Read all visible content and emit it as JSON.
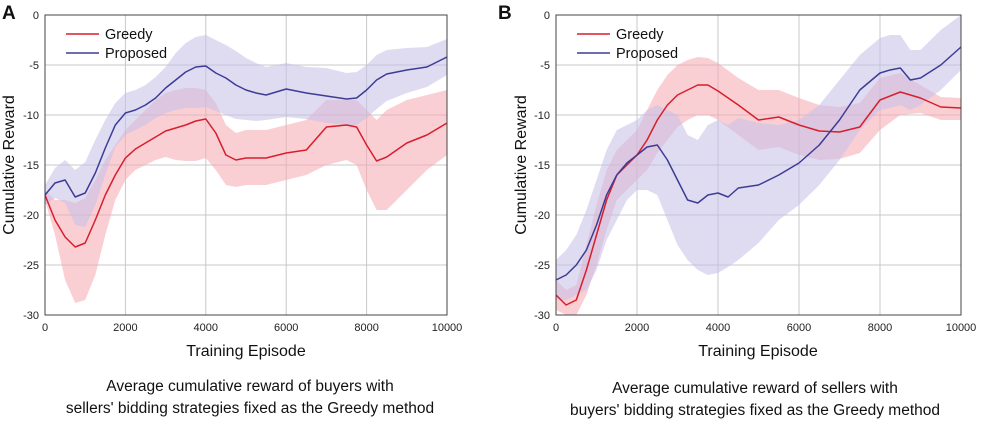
{
  "chart_data": [
    {
      "panel_label": "A",
      "type": "line",
      "xlabel": "Training Episode",
      "ylabel": "Cumulative Reward",
      "xlim": [
        0,
        10000
      ],
      "ylim": [
        -30,
        0
      ],
      "xticks": [
        "0",
        "2000",
        "4000",
        "6000",
        "8000",
        "10000"
      ],
      "yticks": [
        "0",
        "-5",
        "-10",
        "-15",
        "-20",
        "-25",
        "-30"
      ],
      "grid": true,
      "legend_position": "top-left",
      "caption_line1": "Average cumulative reward of buyers with",
      "caption_line2": "sellers' bidding strategies fixed as the Greedy method",
      "series": [
        {
          "name": "Greedy",
          "color": "#d81e2c",
          "band_color": "#f6a8b0",
          "x": [
            0,
            250,
            500,
            750,
            1000,
            1250,
            1500,
            1750,
            2000,
            2250,
            2500,
            2750,
            3000,
            3250,
            3500,
            3750,
            4000,
            4250,
            4500,
            4750,
            5000,
            5500,
            6000,
            6500,
            7000,
            7500,
            7750,
            8000,
            8250,
            8500,
            9000,
            9500,
            10000
          ],
          "values": [
            -18,
            -20.5,
            -22.2,
            -23.2,
            -22.8,
            -20.5,
            -18,
            -16,
            -14.3,
            -13.4,
            -12.8,
            -12.2,
            -11.6,
            -11.3,
            -11,
            -10.6,
            -10.4,
            -11.8,
            -14,
            -14.5,
            -14.3,
            -14.3,
            -13.8,
            -13.5,
            -11.2,
            -11,
            -11.2,
            -13,
            -14.6,
            -14.2,
            -12.8,
            -12,
            -10.8
          ],
          "lower": [
            -18.5,
            -22,
            -26.5,
            -28.8,
            -28.5,
            -26,
            -22,
            -18.5,
            -16.5,
            -15.5,
            -15,
            -14.5,
            -14.2,
            -14.5,
            -14.6,
            -14.6,
            -14.3,
            -15.5,
            -17,
            -17.2,
            -17,
            -17,
            -16.5,
            -16,
            -15,
            -14.5,
            -15,
            -17.5,
            -19.5,
            -19.5,
            -17.5,
            -15.5,
            -14
          ],
          "upper": [
            -17.5,
            -18.5,
            -18.5,
            -18.8,
            -18.3,
            -16.5,
            -14.5,
            -13,
            -11.5,
            -10.5,
            -9.5,
            -8.5,
            -7.8,
            -7.5,
            -7.3,
            -7.3,
            -7.5,
            -8.8,
            -11,
            -11.8,
            -11.5,
            -11.5,
            -11,
            -10.5,
            -8.5,
            -8.5,
            -8.5,
            -9.5,
            -10.5,
            -9.5,
            -8.5,
            -8,
            -7.5
          ]
        },
        {
          "name": "Proposed",
          "color": "#3c3c96",
          "band_color": "#c4bfe8",
          "x": [
            0,
            250,
            500,
            750,
            1000,
            1250,
            1500,
            1750,
            2000,
            2250,
            2500,
            2750,
            3000,
            3250,
            3500,
            3750,
            4000,
            4250,
            4500,
            4750,
            5000,
            5250,
            5500,
            6000,
            6500,
            7000,
            7500,
            7750,
            8000,
            8250,
            8500,
            9000,
            9500,
            10000
          ],
          "values": [
            -18,
            -16.8,
            -16.5,
            -18.2,
            -17.8,
            -15.8,
            -13.3,
            -11,
            -9.8,
            -9.5,
            -9,
            -8.3,
            -7.3,
            -6.5,
            -5.7,
            -5.2,
            -5.1,
            -5.8,
            -6.3,
            -7,
            -7.5,
            -7.8,
            -8,
            -7.4,
            -7.8,
            -8.1,
            -8.4,
            -8.3,
            -7.5,
            -6.5,
            -5.9,
            -5.5,
            -5.2,
            -4.2
          ],
          "lower": [
            -19,
            -18.3,
            -18.8,
            -21,
            -21.2,
            -19,
            -16,
            -13.2,
            -12,
            -11.5,
            -11,
            -10.3,
            -9.8,
            -9.5,
            -9.3,
            -9.3,
            -9.2,
            -9.6,
            -10,
            -10.4,
            -10.5,
            -10.6,
            -10.5,
            -10.2,
            -10.4,
            -10.8,
            -11,
            -11,
            -10.3,
            -9.4,
            -8.6,
            -7.8,
            -7.2,
            -6
          ],
          "upper": [
            -17,
            -15.3,
            -14.5,
            -15.5,
            -14.7,
            -12.5,
            -10.5,
            -8.8,
            -7.8,
            -7.5,
            -7,
            -6.2,
            -5.2,
            -3.8,
            -2.8,
            -2.2,
            -2,
            -2.5,
            -3,
            -3.6,
            -4.3,
            -4.8,
            -5.2,
            -4.8,
            -5.2,
            -5.3,
            -5.8,
            -5.7,
            -5,
            -4,
            -3.5,
            -3.3,
            -3.2,
            -2.4
          ]
        }
      ]
    },
    {
      "panel_label": "B",
      "type": "line",
      "xlabel": "Training Episode",
      "ylabel": "Cumulative Reward",
      "xlim": [
        0,
        10000
      ],
      "ylim": [
        -30,
        0
      ],
      "xticks": [
        "0",
        "2000",
        "4000",
        "6000",
        "8000",
        "10000"
      ],
      "yticks": [
        "0",
        "-5",
        "-10",
        "-15",
        "-20",
        "-25",
        "-30"
      ],
      "grid": true,
      "legend_position": "top-left",
      "caption_line1": "Average cumulative reward of sellers with",
      "caption_line2": "buyers' bidding strategies fixed as the Greedy method",
      "series": [
        {
          "name": "Greedy",
          "color": "#d81e2c",
          "band_color": "#f6a8b0",
          "x": [
            0,
            250,
            500,
            750,
            1000,
            1250,
            1500,
            1750,
            2000,
            2250,
            2500,
            2750,
            3000,
            3250,
            3500,
            3750,
            4000,
            4500,
            5000,
            5500,
            6000,
            6500,
            7000,
            7500,
            8000,
            8500,
            9000,
            9500,
            10000
          ],
          "values": [
            -28,
            -29,
            -28.5,
            -25.5,
            -22,
            -18.5,
            -16,
            -15,
            -14,
            -12.5,
            -10.5,
            -9,
            -8,
            -7.5,
            -7,
            -7,
            -7.6,
            -9,
            -10.5,
            -10.2,
            -11,
            -11.6,
            -11.7,
            -11.2,
            -8.5,
            -7.7,
            -8.3,
            -9.2,
            -9.3
          ],
          "lower": [
            -29.5,
            -30,
            -30,
            -28,
            -25,
            -21.5,
            -18.5,
            -17.5,
            -16.5,
            -15.5,
            -13.8,
            -12.5,
            -11.2,
            -10.5,
            -10,
            -10,
            -10.5,
            -12,
            -13.5,
            -13.2,
            -14,
            -14.5,
            -14.4,
            -13.8,
            -11.5,
            -10,
            -9.8,
            -10.5,
            -10.5
          ],
          "upper": [
            -26.5,
            -27.5,
            -27,
            -23,
            -19,
            -15.5,
            -13.5,
            -12.5,
            -11.5,
            -9.5,
            -7.5,
            -6,
            -5,
            -4.5,
            -4.2,
            -4.3,
            -4.8,
            -6.3,
            -7.5,
            -7.5,
            -8.3,
            -9,
            -9.2,
            -8.8,
            -6.3,
            -5.8,
            -7,
            -8.2,
            -8.3
          ]
        },
        {
          "name": "Proposed",
          "color": "#3c3c96",
          "band_color": "#c4bfe8",
          "x": [
            0,
            250,
            500,
            750,
            1000,
            1250,
            1500,
            1750,
            2000,
            2250,
            2500,
            2750,
            3000,
            3250,
            3500,
            3750,
            4000,
            4250,
            4500,
            5000,
            5500,
            6000,
            6500,
            7000,
            7500,
            8000,
            8250,
            8500,
            8750,
            9000,
            9500,
            10000
          ],
          "values": [
            -26.5,
            -26,
            -25,
            -23.5,
            -21,
            -18,
            -16,
            -14.8,
            -14,
            -13.2,
            -13,
            -14.5,
            -16.5,
            -18.5,
            -18.8,
            -18,
            -17.8,
            -18.2,
            -17.3,
            -17,
            -16,
            -14.8,
            -13,
            -10.5,
            -7.5,
            -5.8,
            -5.5,
            -5.3,
            -6.5,
            -6.3,
            -5,
            -3.2
          ],
          "lower": [
            -28.5,
            -28.5,
            -28,
            -27.5,
            -25.5,
            -22.5,
            -20.5,
            -18.5,
            -17.5,
            -17.5,
            -18,
            -20.5,
            -23,
            -24.5,
            -25.5,
            -26,
            -25.8,
            -25.2,
            -24.5,
            -22.8,
            -20.5,
            -19,
            -17,
            -14.5,
            -11.5,
            -9.5,
            -9.3,
            -9,
            -9.5,
            -9,
            -7.5,
            -5.5
          ],
          "upper": [
            -24.5,
            -23.5,
            -22,
            -19.5,
            -16.5,
            -13.5,
            -11.5,
            -11,
            -10.5,
            -9.5,
            -9,
            -9.5,
            -10,
            -12,
            -12.5,
            -11,
            -10.5,
            -11,
            -10.3,
            -10.8,
            -11,
            -10.5,
            -9,
            -6.5,
            -4,
            -2.3,
            -2,
            -2,
            -3.5,
            -3.5,
            -1.5,
            0
          ]
        }
      ]
    }
  ]
}
